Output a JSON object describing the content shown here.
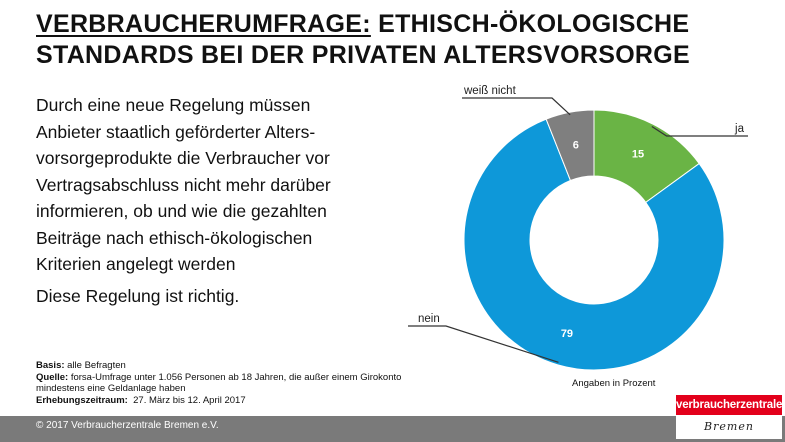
{
  "title": {
    "lead": "VERBRAUCHERUMFRAGE:",
    "rest": "ETHISCH-ÖKOLOGISCHE",
    "line2": "STANDARDS BEI DER PRIVATEN ALTERSVORSORGE"
  },
  "body": {
    "lines": [
      "Durch eine neue Regelung müssen",
      "Anbieter staatlich geförderter Alters-",
      "vorsorgeprodukte die Verbraucher vor",
      "Vertragsabschluss nicht mehr darüber",
      "informieren, ob und wie die gezahlten",
      "Beiträge nach ethisch-ökologischen",
      "Kriterien angelegt werden"
    ],
    "statement": "Diese Regelung ist richtig."
  },
  "notes": {
    "basis_label": "Basis:",
    "basis_value": "alle Befragten",
    "source_label": "Quelle:",
    "source_line1": "forsa-Umfrage unter 1.056 Personen ab 18 Jahren, die außer einem Girokonto",
    "source_line2": "mindestens eine Geldanlage haben",
    "period_label": "Erhebungszeitraum:",
    "period_value": "27. März bis 12. April 2017"
  },
  "chart_data": {
    "type": "pie",
    "variant": "donut",
    "unit_note": "Angaben in Prozent",
    "slices": [
      {
        "label": "ja",
        "value": 15,
        "color": "#6ab445"
      },
      {
        "label": "nein",
        "value": 79,
        "color": "#0e98d9"
      },
      {
        "label": "weiß nicht",
        "value": 6,
        "color": "#7f7f7f"
      }
    ]
  },
  "footer": {
    "copyright": "© 2017 Verbraucherzentrale Bremen e.V."
  },
  "logo": {
    "top": "verbraucherzentrale",
    "bottom": "Bremen"
  }
}
